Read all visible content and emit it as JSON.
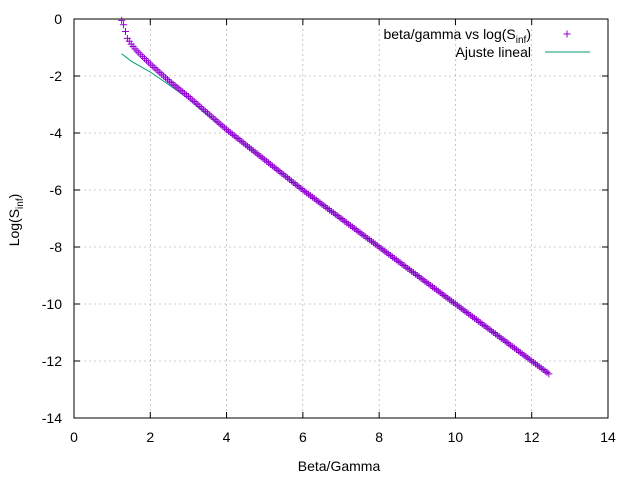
{
  "chart_data": {
    "type": "scatter",
    "xlabel": "Beta/Gamma",
    "ylabel": "Log(S",
    "ylabel_sub": "inf",
    "ylabel_close": ")",
    "xlim": [
      0,
      14
    ],
    "ylim": [
      -14,
      0
    ],
    "xticks": [
      0,
      2,
      4,
      6,
      8,
      10,
      12,
      14
    ],
    "yticks": [
      0,
      -2,
      -4,
      -6,
      -8,
      -10,
      -12,
      -14
    ],
    "grid": true,
    "legend_position": "top-right",
    "series": [
      {
        "name": "beta/gamma vs log(S",
        "name_sub": "inf",
        "name_close": ")",
        "kind": "points",
        "marker": "+",
        "color": "#9400d3",
        "x_start": 1.25,
        "x_end": 12.45,
        "x_step": 0.05,
        "samples": [
          [
            1.25,
            -0.05
          ],
          [
            1.3,
            -0.2
          ],
          [
            1.4,
            -0.68
          ],
          [
            1.5,
            -0.88
          ],
          [
            1.6,
            -1.05
          ],
          [
            1.8,
            -1.32
          ],
          [
            2.0,
            -1.58
          ],
          [
            2.5,
            -2.18
          ],
          [
            3.0,
            -2.72
          ],
          [
            4.0,
            -3.88
          ],
          [
            6.0,
            -6.0
          ],
          [
            8.0,
            -8.0
          ],
          [
            10.0,
            -10.0
          ],
          [
            12.45,
            -12.45
          ]
        ]
      },
      {
        "name": "Ajuste lineal",
        "kind": "line",
        "color": "#009e73",
        "x_start": 1.25,
        "x_end": 12.45,
        "samples": [
          [
            1.25,
            -1.22
          ],
          [
            1.5,
            -1.48
          ],
          [
            2.0,
            -1.86
          ],
          [
            2.5,
            -2.32
          ],
          [
            3.0,
            -2.8
          ],
          [
            4.0,
            -3.9
          ],
          [
            6.0,
            -6.0
          ],
          [
            8.0,
            -8.0
          ],
          [
            10.0,
            -10.0
          ],
          [
            12.45,
            -12.45
          ]
        ]
      }
    ]
  }
}
